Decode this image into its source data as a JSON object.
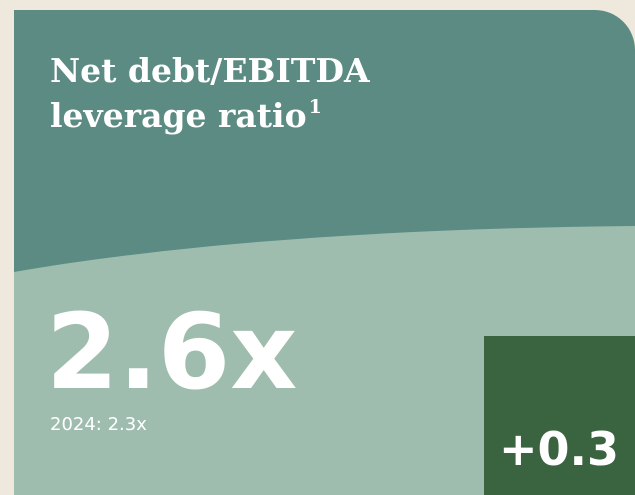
{
  "card": {
    "title_line1": "Net debt/EBITDA",
    "title_line2": "leverage ratio",
    "footnote_marker": "1",
    "value": "2.6x",
    "comparison": "2024: 2.3x",
    "change": "+0.3"
  }
}
